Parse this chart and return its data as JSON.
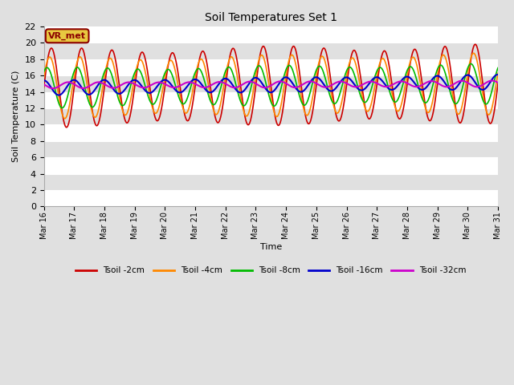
{
  "title": "Soil Temperatures Set 1",
  "xlabel": "Time",
  "ylabel": "Soil Temperature (C)",
  "ylim": [
    0,
    22
  ],
  "annotation": "VR_met",
  "xtick_labels": [
    "Mar 16",
    "Mar 17",
    "Mar 18",
    "Mar 19",
    "Mar 20",
    "Mar 21",
    "Mar 22",
    "Mar 23",
    "Mar 24",
    "Mar 25",
    "Mar 26",
    "Mar 27",
    "Mar 28",
    "Mar 29",
    "Mar 30",
    "Mar 31"
  ],
  "legend_colors": [
    "#cc0000",
    "#ff8800",
    "#00bb00",
    "#0000cc",
    "#cc00cc"
  ],
  "legend_labels": [
    "Tsoil -2cm",
    "Tsoil -4cm",
    "Tsoil -8cm",
    "Tsoil -16cm",
    "Tsoil -32cm"
  ],
  "bg_light": "#f0f0f0",
  "bg_dark": "#d8d8d8",
  "fig_bg": "#e0e0e0",
  "amplitudes": [
    4.5,
    3.5,
    2.3,
    0.85,
    0.35
  ],
  "phases": [
    0.0,
    0.35,
    0.9,
    1.6,
    2.8
  ],
  "baselines_start": [
    14.5,
    14.5,
    14.5,
    14.5,
    14.8
  ],
  "baselines_end": [
    15.0,
    15.0,
    15.0,
    15.2,
    15.0
  ]
}
